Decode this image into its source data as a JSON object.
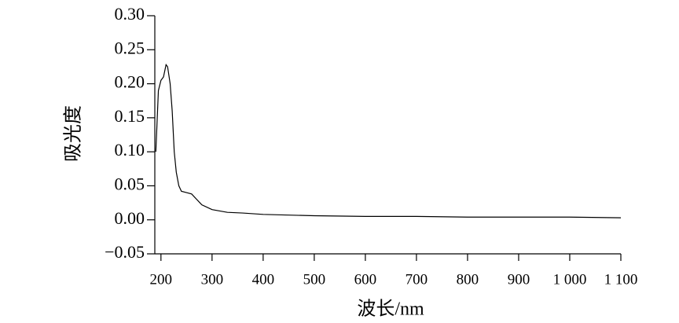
{
  "chart_data": {
    "type": "line",
    "x_label": "波长/nm",
    "y_label": "吸光度",
    "x": [
      190,
      195,
      200,
      205,
      210,
      213,
      218,
      222,
      226,
      230,
      235,
      240,
      250,
      260,
      270,
      280,
      300,
      330,
      360,
      400,
      500,
      600,
      700,
      800,
      900,
      1000,
      1100
    ],
    "series": [
      {
        "color": "#000000",
        "values": [
          0.1,
          0.19,
          0.205,
          0.21,
          0.228,
          0.225,
          0.2,
          0.16,
          0.1,
          0.07,
          0.05,
          0.042,
          0.04,
          0.038,
          0.03,
          0.022,
          0.015,
          0.011,
          0.01,
          0.008,
          0.006,
          0.005,
          0.005,
          0.004,
          0.004,
          0.004,
          0.003
        ]
      }
    ],
    "xlim": [
      188,
      1100
    ],
    "ylim": [
      -0.05,
      0.3
    ],
    "xticks": [
      200,
      300,
      400,
      500,
      600,
      700,
      800,
      900,
      {
        "value": 1000,
        "label": "1 000"
      },
      {
        "value": 1100,
        "label": "1 100"
      }
    ],
    "yticks": [
      {
        "value": -0.05,
        "label": "−0.05"
      },
      {
        "value": 0,
        "label": "0.00"
      },
      {
        "value": 0.05,
        "label": "0.05"
      },
      {
        "value": 0.1,
        "label": "0.10"
      },
      {
        "value": 0.15,
        "label": "0.15"
      },
      {
        "value": 0.2,
        "label": "0.20"
      },
      {
        "value": 0.25,
        "label": "0.25"
      },
      {
        "value": 0.3,
        "label": "0.30"
      }
    ]
  }
}
